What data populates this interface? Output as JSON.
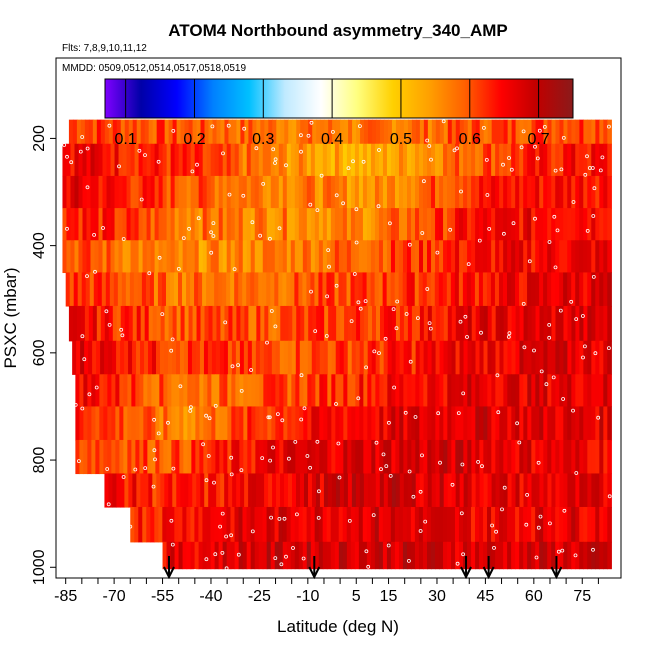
{
  "chart_data": {
    "type": "heatmap",
    "title": "ATOM4 Northbound asymmetry_340_AMP",
    "subtitle_flights": "Flts: 7,8,9,10,11,12",
    "subtitle_dates": "MMDD: 0509,0512,0514,0517,0518,0519",
    "xlabel": "Latitude (deg N)",
    "ylabel": "PSXC (mbar)",
    "xlim": [
      -88,
      87
    ],
    "ylim": [
      1020,
      50
    ],
    "x_ticks": [
      -85,
      -70,
      -55,
      -40,
      -25,
      -10,
      5,
      15,
      30,
      45,
      60,
      75
    ],
    "y_ticks": [
      200,
      400,
      600,
      800,
      1000
    ],
    "colorbar": {
      "range": [
        0.07,
        0.75
      ],
      "ticks": [
        0.1,
        0.2,
        0.3,
        0.4,
        0.5,
        0.6,
        0.7
      ],
      "tick_labels": [
        "0.1",
        "0.2",
        "0.3",
        "0.4",
        "0.5",
        "0.6",
        "0.7"
      ],
      "colors": [
        "#7f00ff",
        "#0000a8",
        "#0000ff",
        "#0080ff",
        "#00c0ff",
        "#c0eaff",
        "#ffffff",
        "#ffff80",
        "#ffd000",
        "#ffa000",
        "#ff6000",
        "#ff0000",
        "#c00000",
        "#8b1a1a"
      ]
    },
    "pressure_levels": [
      180,
      240,
      300,
      360,
      420,
      480,
      545,
      610,
      670,
      730,
      795,
      855,
      920,
      985
    ],
    "rows": [
      {
        "p": 180,
        "xmin": -84,
        "xmax": 84,
        "lat": [
          -80,
          -50,
          -20,
          10,
          40,
          70
        ],
        "values": [
          0.62,
          0.6,
          0.58,
          0.57,
          0.6,
          0.62
        ]
      },
      {
        "p": 240,
        "xmin": -86,
        "xmax": 84,
        "lat": [
          -80,
          -50,
          -20,
          10,
          40,
          70
        ],
        "values": [
          0.66,
          0.62,
          0.56,
          0.52,
          0.6,
          0.64
        ]
      },
      {
        "p": 300,
        "xmin": -86,
        "xmax": 84,
        "lat": [
          -80,
          -50,
          -20,
          10,
          40,
          70
        ],
        "values": [
          0.66,
          0.6,
          0.58,
          0.55,
          0.63,
          0.65
        ]
      },
      {
        "p": 360,
        "xmin": -86,
        "xmax": 84,
        "lat": [
          -80,
          -50,
          -20,
          10,
          40,
          70
        ],
        "values": [
          0.64,
          0.58,
          0.57,
          0.56,
          0.64,
          0.66
        ]
      },
      {
        "p": 420,
        "xmin": -86,
        "xmax": 84,
        "lat": [
          -80,
          -50,
          -20,
          10,
          40,
          70
        ],
        "values": [
          0.6,
          0.55,
          0.57,
          0.6,
          0.64,
          0.66
        ]
      },
      {
        "p": 480,
        "xmin": -85,
        "xmax": 84,
        "lat": [
          -80,
          -50,
          -20,
          10,
          40,
          70
        ],
        "values": [
          0.62,
          0.58,
          0.59,
          0.61,
          0.64,
          0.67
        ]
      },
      {
        "p": 545,
        "xmin": -84,
        "xmax": 84,
        "lat": [
          -80,
          -50,
          -20,
          10,
          40,
          70
        ],
        "values": [
          0.65,
          0.6,
          0.6,
          0.62,
          0.66,
          0.67
        ]
      },
      {
        "p": 610,
        "xmin": -83,
        "xmax": 84,
        "lat": [
          -80,
          -50,
          -20,
          10,
          40,
          70
        ],
        "values": [
          0.67,
          0.62,
          0.6,
          0.62,
          0.66,
          0.67
        ]
      },
      {
        "p": 670,
        "xmin": -82,
        "xmax": 84,
        "lat": [
          -80,
          -50,
          -20,
          10,
          40,
          70
        ],
        "values": [
          0.66,
          0.58,
          0.6,
          0.64,
          0.67,
          0.67
        ]
      },
      {
        "p": 730,
        "xmin": -82,
        "xmax": 84,
        "lat": [
          -80,
          -50,
          -20,
          10,
          40,
          70
        ],
        "values": [
          0.64,
          0.56,
          0.63,
          0.66,
          0.68,
          0.67
        ]
      },
      {
        "p": 795,
        "xmin": -82,
        "xmax": 84,
        "lat": [
          -80,
          -50,
          -20,
          10,
          40,
          70
        ],
        "values": [
          0.62,
          0.6,
          0.66,
          0.68,
          0.68,
          0.66
        ]
      },
      {
        "p": 855,
        "xmin": -73,
        "xmax": 84,
        "lat": [
          -70,
          -50,
          -20,
          10,
          40,
          70
        ],
        "values": [
          0.65,
          0.62,
          0.66,
          0.69,
          0.67,
          0.66
        ]
      },
      {
        "p": 920,
        "xmin": -65,
        "xmax": 84,
        "lat": [
          -60,
          -40,
          -20,
          10,
          40,
          70
        ],
        "values": [
          0.64,
          0.66,
          0.67,
          0.68,
          0.66,
          0.67
        ]
      },
      {
        "p": 985,
        "xmin": -55,
        "xmax": 84,
        "lat": [
          -50,
          -30,
          -10,
          10,
          40,
          70
        ],
        "values": [
          0.66,
          0.68,
          0.69,
          0.69,
          0.68,
          0.68
        ]
      }
    ],
    "arrows_lat": [
      -53,
      -8,
      39,
      46,
      67
    ]
  }
}
